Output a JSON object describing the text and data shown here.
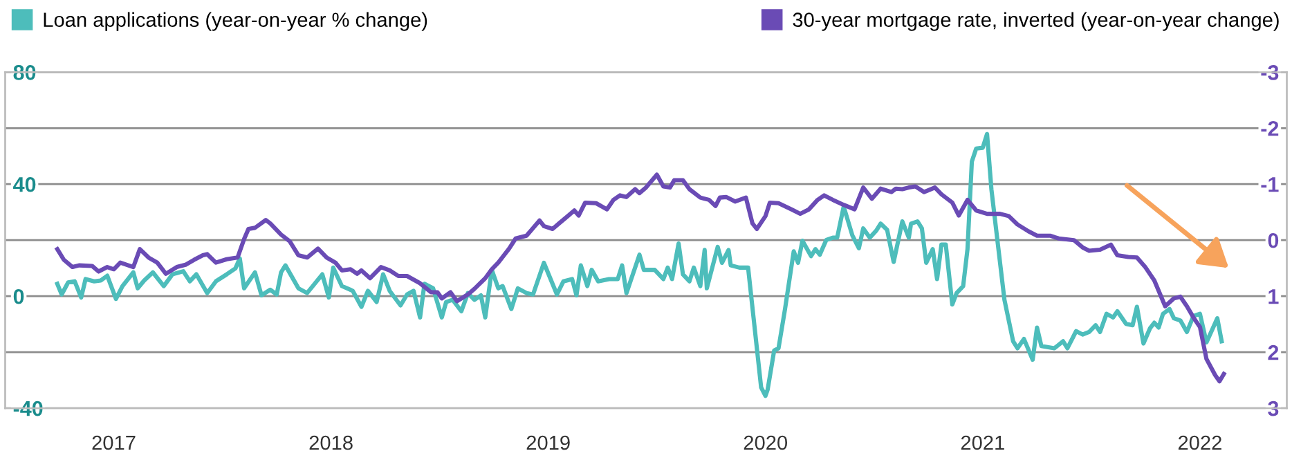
{
  "chart_data": {
    "type": "line",
    "xlim": [
      2017.0,
      2022.9
    ],
    "xticks": [
      {
        "value": 2017.5,
        "label": "2017"
      },
      {
        "value": 2018.5,
        "label": "2018"
      },
      {
        "value": 2019.5,
        "label": "2019"
      },
      {
        "value": 2020.5,
        "label": "2020"
      },
      {
        "value": 2021.5,
        "label": "2021"
      },
      {
        "value": 2022.5,
        "label": "2022"
      }
    ],
    "ylim": [
      -40,
      80
    ],
    "yticks": [
      -40,
      {
        "value": -20,
        "label": null
      },
      0,
      {
        "value": 20,
        "label": null
      },
      40,
      {
        "value": 60,
        "label": null
      },
      80
    ],
    "y2lim": [
      3,
      -3
    ],
    "y2ticks": [
      3,
      2,
      1,
      0,
      -1,
      -2,
      -3
    ],
    "grid": "y",
    "legend": "top",
    "line_style": "solid",
    "series": [
      {
        "name": "Loan applications (year-on-year % change)",
        "color": "#4dbdbb",
        "x": [
          2017.24,
          2017.26,
          2017.29,
          2017.32,
          2017.35,
          2017.37,
          2017.41,
          2017.44,
          2017.47,
          2017.51,
          2017.54,
          2017.59,
          2017.61,
          2017.64,
          2017.68,
          2017.73,
          2017.77,
          2017.82,
          2017.85,
          2017.88,
          2017.93,
          2017.97,
          2018.02,
          2018.06,
          2018.08,
          2018.1,
          2018.15,
          2018.18,
          2018.22,
          2018.25,
          2018.27,
          2018.29,
          2018.35,
          2018.39,
          2018.46,
          2018.49,
          2018.51,
          2018.55,
          2018.6,
          2018.64,
          2018.67,
          2018.71,
          2018.74,
          2018.77,
          2018.82,
          2018.85,
          2018.88,
          2018.91,
          2018.93,
          2018.97,
          2019.01,
          2019.03,
          2019.06,
          2019.1,
          2019.13,
          2019.16,
          2019.19,
          2019.21,
          2019.24,
          2019.27,
          2019.29,
          2019.33,
          2019.36,
          2019.4,
          2019.43,
          2019.48,
          2019.54,
          2019.57,
          2019.61,
          2019.63,
          2019.65,
          2019.68,
          2019.7,
          2019.73,
          2019.78,
          2019.82,
          2019.84,
          2019.86,
          2019.92,
          2019.94,
          2019.99,
          2020.03,
          2020.05,
          2020.07,
          2020.1,
          2020.12,
          2020.15,
          2020.17,
          2020.2,
          2020.22,
          2020.23,
          2020.28,
          2020.3,
          2020.33,
          2020.34,
          2020.38,
          2020.42,
          2020.45,
          2020.48,
          2020.5,
          2020.51,
          2020.54,
          2020.56,
          2020.59,
          2020.63,
          2020.65,
          2020.67,
          2020.71,
          2020.73,
          2020.75,
          2020.78,
          2020.81,
          2020.83,
          2020.86,
          2020.9,
          2020.93,
          2020.95,
          2020.98,
          2021.01,
          2021.03,
          2021.06,
          2021.09,
          2021.13,
          2021.16,
          2021.17,
          2021.2,
          2021.22,
          2021.24,
          2021.27,
          2021.29,
          2021.31,
          2021.33,
          2021.36,
          2021.38,
          2021.41,
          2021.43,
          2021.45,
          2021.47,
          2021.5,
          2021.52,
          2021.54,
          2021.57,
          2021.6,
          2021.64,
          2021.66,
          2021.69,
          2021.73,
          2021.75,
          2021.77,
          2021.83,
          2021.87,
          2021.89,
          2021.93,
          2021.96,
          2021.99,
          2022.02,
          2022.04,
          2022.07,
          2022.1,
          2022.12,
          2022.16,
          2022.19,
          2022.21,
          2022.24,
          2022.27,
          2022.29,
          2022.31,
          2022.33,
          2022.36,
          2022.38,
          2022.41,
          2022.44,
          2022.47,
          2022.5,
          2022.53,
          2022.58,
          2022.6
        ],
        "values": [
          4.4,
          0.6,
          4.9,
          5.3,
          -0.5,
          6.1,
          5.3,
          5.6,
          7.3,
          -1,
          3.6,
          8.5,
          2.8,
          5.6,
          8.5,
          3.6,
          7.8,
          8.9,
          5.3,
          7.8,
          1.1,
          5.3,
          7.8,
          9.9,
          13.5,
          2.8,
          8.5,
          0.3,
          2.3,
          0.6,
          8.5,
          11,
          2.8,
          1.1,
          7.8,
          -0.5,
          10.2,
          3.6,
          1.9,
          -3.8,
          1.9,
          -2.1,
          7.8,
          1.9,
          -3.3,
          0.6,
          1.9,
          -7.6,
          4.4,
          2.8,
          -7.6,
          -2.1,
          -1.3,
          -5.4,
          1.1,
          -1.3,
          0.3,
          -7.6,
          9.4,
          2.8,
          3.6,
          -4.6,
          2.8,
          1.1,
          0.6,
          11.9,
          0.6,
          5.3,
          6.1,
          0.3,
          11,
          3.6,
          9.4,
          5.3,
          6.1,
          6.1,
          11,
          1.1,
          14.8,
          9.4,
          9.4,
          6.1,
          10.2,
          6.1,
          18.8,
          7.8,
          5.3,
          10.2,
          3.6,
          16.5,
          2.8,
          17.6,
          11.9,
          16.5,
          11,
          10.2,
          10.2,
          -11.2,
          -32.6,
          -35.6,
          -33.4,
          -19.4,
          -18.6,
          -4.6,
          16,
          11.9,
          19.8,
          14.3,
          16.8,
          14.8,
          20.1,
          20.9,
          20.9,
          32,
          21.7,
          17.1,
          24.2,
          20.9,
          23.4,
          25.9,
          23.7,
          12.2,
          26.7,
          20.9,
          25.9,
          26.7,
          24.2,
          11.9,
          16.8,
          6.1,
          18.4,
          18.4,
          -3,
          1.1,
          3.6,
          16.8,
          48.1,
          52.7,
          53,
          57.9,
          38.2,
          18.4,
          -1.3,
          -16.1,
          -18.6,
          -15.3,
          -22.7,
          -11.2,
          -17.8,
          -18.6,
          -16.1,
          -18.6,
          -12.5,
          -13.7,
          -12.8,
          -10.4,
          -12.8,
          -6.3,
          -7.6,
          -5.4,
          -9.9,
          -10.4,
          -3.8,
          -16.9,
          -11.5,
          -9.5,
          -11.2,
          -6.3,
          -4.6,
          -7.9,
          -8.7,
          -12.8,
          -7.1,
          -6.3,
          -16.5,
          -7.9,
          -16.1
        ]
      },
      {
        "name": "30-year mortgage rate, inverted (year-on-year change)",
        "color": "#6a4bb5",
        "axis": "y2",
        "x": [
          2017.24,
          2017.27,
          2017.31,
          2017.34,
          2017.4,
          2017.43,
          2017.47,
          2017.5,
          2017.53,
          2017.59,
          2017.62,
          2017.66,
          2017.7,
          2017.74,
          2017.79,
          2017.83,
          2017.87,
          2017.91,
          2017.93,
          2017.97,
          2018.02,
          2018.07,
          2018.1,
          2018.12,
          2018.15,
          2018.2,
          2018.22,
          2018.27,
          2018.31,
          2018.35,
          2018.39,
          2018.44,
          2018.48,
          2018.52,
          2018.55,
          2018.59,
          2018.62,
          2018.64,
          2018.68,
          2018.73,
          2018.77,
          2018.81,
          2018.85,
          2018.91,
          2018.96,
          2018.99,
          2019.01,
          2019.05,
          2019.08,
          2019.13,
          2019.16,
          2019.21,
          2019.24,
          2019.27,
          2019.32,
          2019.35,
          2019.4,
          2019.46,
          2019.48,
          2019.52,
          2019.55,
          2019.59,
          2019.62,
          2019.64,
          2019.67,
          2019.72,
          2019.77,
          2019.8,
          2019.83,
          2019.86,
          2019.9,
          2019.92,
          2019.95,
          2020.0,
          2020.03,
          2020.06,
          2020.08,
          2020.12,
          2020.15,
          2020.2,
          2020.24,
          2020.27,
          2020.29,
          2020.32,
          2020.36,
          2020.41,
          2020.44,
          2020.46,
          2020.5,
          2020.52,
          2020.56,
          2020.62,
          2020.66,
          2020.7,
          2020.74,
          2020.77,
          2020.81,
          2020.86,
          2020.91,
          2020.95,
          2020.99,
          2021.03,
          2021.08,
          2021.1,
          2021.13,
          2021.16,
          2021.19,
          2021.23,
          2021.28,
          2021.31,
          2021.36,
          2021.39,
          2021.43,
          2021.47,
          2021.52,
          2021.58,
          2021.62,
          2021.66,
          2021.71,
          2021.75,
          2021.81,
          2021.85,
          2021.92,
          2021.96,
          2021.99,
          2022.04,
          2022.09,
          2022.12,
          2022.17,
          2022.21,
          2022.25,
          2022.29,
          2022.34,
          2022.38,
          2022.41,
          2022.44,
          2022.47,
          2022.5,
          2022.53,
          2022.57,
          2022.59,
          2022.61
        ],
        "values": [
          0.16,
          0.35,
          0.48,
          0.45,
          0.46,
          0.56,
          0.48,
          0.52,
          0.4,
          0.48,
          0.16,
          0.31,
          0.4,
          0.6,
          0.48,
          0.44,
          0.35,
          0.27,
          0.25,
          0.4,
          0.34,
          0.31,
          -0.02,
          -0.2,
          -0.22,
          -0.36,
          -0.3,
          -0.1,
          0.02,
          0.27,
          0.31,
          0.15,
          0.31,
          0.4,
          0.54,
          0.52,
          0.6,
          0.54,
          0.68,
          0.48,
          0.54,
          0.64,
          0.64,
          0.77,
          0.93,
          0.93,
          1.04,
          0.93,
          1.09,
          0.97,
          0.87,
          0.68,
          0.52,
          0.4,
          0.15,
          -0.03,
          -0.08,
          -0.35,
          -0.25,
          -0.2,
          -0.3,
          -0.43,
          -0.53,
          -0.44,
          -0.67,
          -0.66,
          -0.55,
          -0.72,
          -0.8,
          -0.77,
          -0.91,
          -0.84,
          -0.94,
          -1.17,
          -0.96,
          -0.94,
          -1.07,
          -1.07,
          -0.91,
          -0.76,
          -0.72,
          -0.61,
          -0.76,
          -0.77,
          -0.69,
          -0.76,
          -0.3,
          -0.2,
          -0.43,
          -0.67,
          -0.66,
          -0.55,
          -0.47,
          -0.55,
          -0.72,
          -0.8,
          -0.72,
          -0.63,
          -0.55,
          -0.94,
          -0.74,
          -0.92,
          -0.86,
          -0.92,
          -0.91,
          -0.94,
          -0.96,
          -0.86,
          -0.94,
          -0.82,
          -0.67,
          -0.44,
          -0.72,
          -0.53,
          -0.47,
          -0.47,
          -0.43,
          -0.28,
          -0.16,
          -0.08,
          -0.08,
          -0.03,
          0,
          0.13,
          0.19,
          0.17,
          0.08,
          0.27,
          0.3,
          0.31,
          0.49,
          0.72,
          1.18,
          1.04,
          1.01,
          1.18,
          1.38,
          1.55,
          2.12,
          2.41,
          2.52,
          2.39
        ]
      }
    ]
  }
}
